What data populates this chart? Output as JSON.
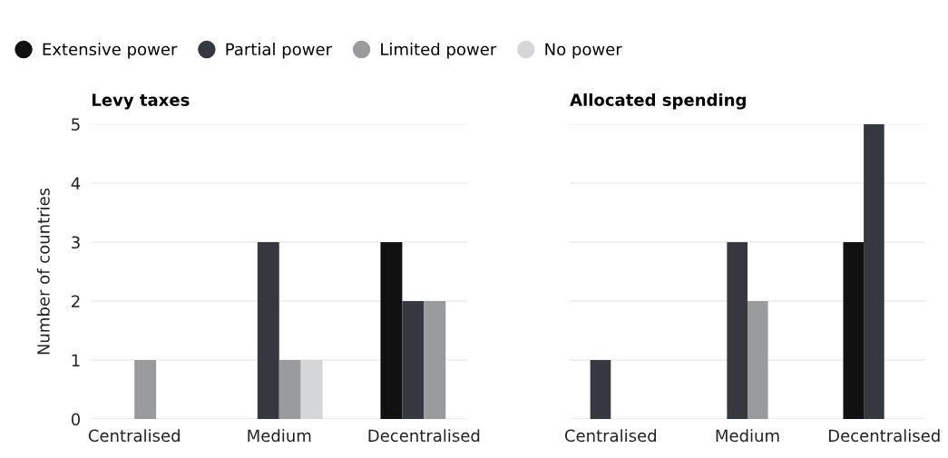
{
  "chart_data": [
    {
      "type": "bar",
      "title": "Levy taxes",
      "ylabel": "Number of countries",
      "categories": [
        "Centralised",
        "Medium",
        "Decentralised"
      ],
      "ylim": [
        0,
        5
      ],
      "yticks": [
        0,
        1,
        2,
        3,
        4,
        5
      ],
      "grid": "y",
      "legend": "top",
      "series": [
        {
          "name": "Extensive power",
          "color": "#111111",
          "values": [
            0,
            0,
            3
          ]
        },
        {
          "name": "Partial power",
          "color": "#35383f",
          "values": [
            0,
            3,
            2
          ]
        },
        {
          "name": "Limited power",
          "color": "#9a9b9d",
          "values": [
            1,
            1,
            2
          ]
        },
        {
          "name": "No power",
          "color": "#d4d6d8",
          "values": [
            0,
            1,
            0
          ]
        }
      ]
    },
    {
      "type": "bar",
      "title": "Allocated spending",
      "categories": [
        "Centralised",
        "Medium",
        "Decentralised"
      ],
      "ylim": [
        0,
        5
      ],
      "yticks": [
        0,
        1,
        2,
        3,
        4,
        5
      ],
      "grid": "y",
      "tick_labels": "x",
      "series": [
        {
          "color": "#111111",
          "values": [
            0,
            0,
            3
          ]
        },
        {
          "color": "#35383f",
          "values": [
            1,
            3,
            5
          ]
        },
        {
          "color": "#9a9b9d",
          "values": [
            0,
            2,
            0
          ]
        },
        {
          "color": "#d4d6d8",
          "values": [
            0,
            0,
            0
          ]
        }
      ]
    }
  ]
}
